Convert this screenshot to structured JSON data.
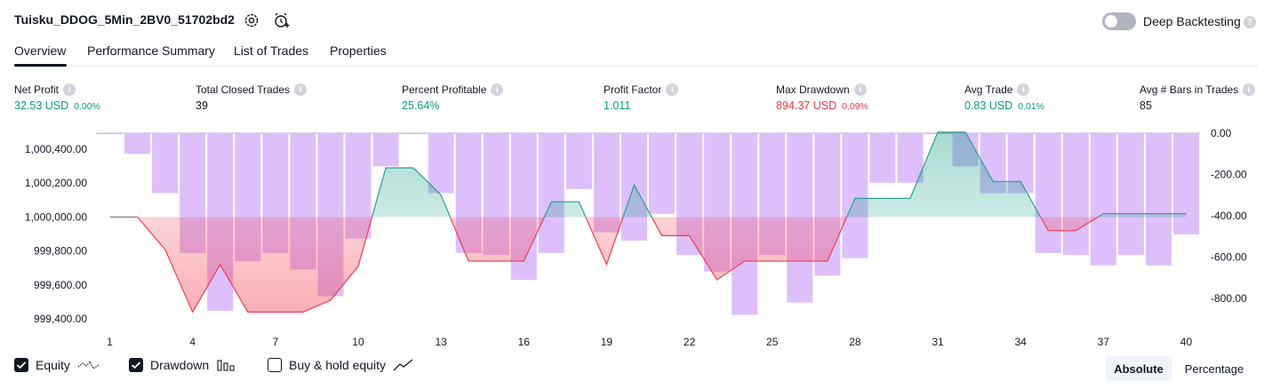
{
  "header": {
    "strategy_name": "Tuisku_DDOG_5Min_2BV0_51702bd2",
    "settings_icon": "gear-icon",
    "alert_icon": "alarm-clock-plus-icon",
    "deep_backtesting_label": "Deep Backtesting",
    "deep_backtesting_enabled": false
  },
  "tabs": [
    {
      "label": "Overview",
      "active": true
    },
    {
      "label": "Performance Summary",
      "active": false
    },
    {
      "label": "List of Trades",
      "active": false
    },
    {
      "label": "Properties",
      "active": false
    }
  ],
  "metrics": [
    {
      "label": "Net Profit",
      "value": "32.53 USD",
      "pct": "0.00%",
      "tone": "pos"
    },
    {
      "label": "Total Closed Trades",
      "value": "39",
      "pct": "",
      "tone": "neu"
    },
    {
      "label": "Percent Profitable",
      "value": "25.64%",
      "pct": "",
      "tone": "pos"
    },
    {
      "label": "Profit Factor",
      "value": "1.011",
      "pct": "",
      "tone": "pos"
    },
    {
      "label": "Max Drawdown",
      "value": "894.37 USD",
      "pct": "0.09%",
      "tone": "neg"
    },
    {
      "label": "Avg Trade",
      "value": "0.83 USD",
      "pct": "0.01%",
      "tone": "pos"
    },
    {
      "label": "Avg # Bars in Trades",
      "value": "85",
      "pct": "",
      "tone": "neu"
    }
  ],
  "chart_data": {
    "type": "line",
    "x_ticks": [
      "1",
      "4",
      "7",
      "10",
      "13",
      "16",
      "19",
      "22",
      "25",
      "28",
      "31",
      "34",
      "37",
      "40"
    ],
    "left_axis_ticks": [
      "1,000,400.00",
      "1,000,200.00",
      "1,000,000.00",
      "999,800.00",
      "999,600.00",
      "999,400.00"
    ],
    "right_axis_ticks": [
      "0.00",
      "-200.00",
      "-400.00",
      "-600.00",
      "-800.00"
    ],
    "baseline_equity": 1000000,
    "ylim_equity": [
      999300,
      1000500
    ],
    "ylim_drawdown": [
      -900,
      0
    ],
    "series": [
      {
        "name": "Equity",
        "x": [
          1,
          2,
          3,
          4,
          5,
          6,
          7,
          8,
          9,
          10,
          11,
          12,
          13,
          14,
          15,
          16,
          17,
          18,
          19,
          20,
          21,
          22,
          23,
          24,
          25,
          26,
          27,
          28,
          29,
          30,
          31,
          32,
          33,
          34,
          35,
          36,
          37,
          38,
          39,
          40
        ],
        "values": [
          1000000,
          1000000,
          999810,
          999440,
          999720,
          999440,
          999440,
          999440,
          999510,
          999710,
          1000290,
          1000290,
          1000130,
          999740,
          999740,
          999740,
          1000090,
          1000090,
          999720,
          1000190,
          999890,
          999890,
          999630,
          999740,
          999740,
          999740,
          999740,
          1000110,
          1000110,
          1000110,
          1000500,
          1000500,
          1000210,
          1000210,
          999920,
          999920,
          1000020,
          1000020,
          1000020,
          1000020
        ]
      },
      {
        "name": "Drawdown",
        "x": [
          1,
          2,
          3,
          4,
          5,
          6,
          7,
          8,
          9,
          10,
          11,
          12,
          13,
          14,
          15,
          16,
          17,
          18,
          19,
          20,
          21,
          22,
          23,
          24,
          25,
          26,
          27,
          28,
          29,
          30,
          31,
          32,
          33,
          34,
          35,
          36,
          37,
          38,
          39,
          40
        ],
        "values": [
          -5,
          -100,
          -290,
          -580,
          -860,
          -620,
          -580,
          -660,
          -790,
          -510,
          -160,
          -5,
          -290,
          -580,
          -590,
          -710,
          -580,
          -270,
          -480,
          -520,
          -390,
          -590,
          -670,
          -880,
          -590,
          -820,
          -690,
          -605,
          -240,
          -240,
          -5,
          -160,
          -290,
          -290,
          -580,
          -590,
          -640,
          -590,
          -640,
          -490
        ]
      }
    ]
  },
  "legend": {
    "equity_label": "Equity",
    "equity_checked": true,
    "equity_icon": "equity-line-icon",
    "drawdown_label": "Drawdown",
    "drawdown_checked": true,
    "drawdown_icon": "bars-icon",
    "buyhold_label": "Buy & hold equity",
    "buyhold_checked": false,
    "buyhold_icon": "trend-line-icon"
  },
  "view_mode": {
    "absolute_label": "Absolute",
    "percentage_label": "Percentage",
    "selected": "Absolute"
  },
  "colors": {
    "profit": "#089981",
    "loss": "#f23645",
    "drawdown_bar": "#d9b9fb",
    "equity_up_line": "#2e9e8f",
    "equity_down_line": "#ef3e55"
  }
}
